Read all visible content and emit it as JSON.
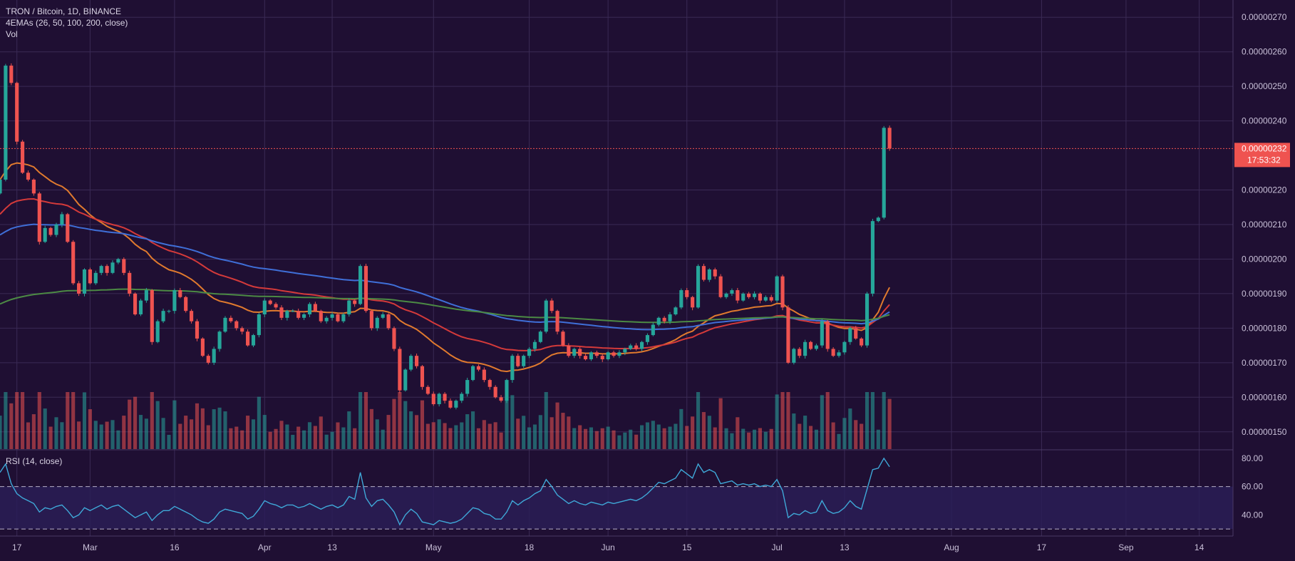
{
  "header": {
    "symbol_line": "TRON / Bitcoin, 1D, BINANCE",
    "ema_line": "4EMAs (26, 50, 100, 200, close)",
    "vol_line": "Vol",
    "rsi_line": "RSI (14, close)"
  },
  "price_tag": {
    "value": "0.00000232",
    "countdown": "17:53:32"
  },
  "colors": {
    "background": "#1f0f33",
    "grid": "#3a2a55",
    "up": "#26a69a",
    "down": "#ef5350",
    "ema26": "#e07a2e",
    "ema50": "#d43a3a",
    "ema100": "#3f6fd8",
    "ema200": "#4c8a44",
    "rsi": "#3fa8d8",
    "rsi_band": "#2b1e58"
  },
  "chart_data": [
    {
      "type": "candlestick",
      "title": "TRON / Bitcoin, 1D, BINANCE",
      "ylim": [
        1.45e-06,
        2.75e-06
      ],
      "y_ticks": [
        "0.00000150",
        "0.00000160",
        "0.00000170",
        "0.00000180",
        "0.00000190",
        "0.00000200",
        "0.00000210",
        "0.00000220",
        "0.00000240",
        "0.00000250",
        "0.00000260",
        "0.00000270"
      ],
      "x_ticks": [
        "17",
        "Mar",
        "16",
        "Apr",
        "13",
        "May",
        "18",
        "Jun",
        "15",
        "Jul",
        "13",
        "Aug",
        "17",
        "Sep",
        "14"
      ],
      "x_range": [
        "2020-02-14",
        "2020-09-20"
      ],
      "last_price": 2.32e-06,
      "close": [
        2.23e-06,
        2.56e-06,
        2.51e-06,
        2.34e-06,
        2.25e-06,
        2.23e-06,
        2.19e-06,
        2.05e-06,
        2.09e-06,
        2.07e-06,
        2.1e-06,
        2.13e-06,
        2.05e-06,
        1.93e-06,
        1.9e-06,
        1.97e-06,
        1.93e-06,
        1.96e-06,
        1.98e-06,
        1.96e-06,
        1.99e-06,
        2e-06,
        1.96e-06,
        1.9e-06,
        1.84e-06,
        1.88e-06,
        1.91e-06,
        1.76e-06,
        1.82e-06,
        1.85e-06,
        1.85e-06,
        1.91e-06,
        1.89e-06,
        1.85e-06,
        1.82e-06,
        1.77e-06,
        1.72e-06,
        1.7e-06,
        1.74e-06,
        1.79e-06,
        1.83e-06,
        1.82e-06,
        1.8e-06,
        1.79e-06,
        1.75e-06,
        1.78e-06,
        1.84e-06,
        1.88e-06,
        1.87e-06,
        1.86e-06,
        1.83e-06,
        1.85e-06,
        1.85e-06,
        1.83e-06,
        1.84e-06,
        1.87e-06,
        1.85e-06,
        1.82e-06,
        1.83e-06,
        1.84e-06,
        1.82e-06,
        1.84e-06,
        1.88e-06,
        1.87e-06,
        1.98e-06,
        1.85e-06,
        1.8e-06,
        1.83e-06,
        1.84e-06,
        1.8e-06,
        1.74e-06,
        1.62e-06,
        1.68e-06,
        1.72e-06,
        1.69e-06,
        1.63e-06,
        1.61e-06,
        1.58e-06,
        1.61e-06,
        1.59e-06,
        1.57e-06,
        1.59e-06,
        1.61e-06,
        1.65e-06,
        1.69e-06,
        1.68e-06,
        1.65e-06,
        1.63e-06,
        1.6e-06,
        1.59e-06,
        1.65e-06,
        1.72e-06,
        1.69e-06,
        1.72e-06,
        1.74e-06,
        1.76e-06,
        1.79e-06,
        1.88e-06,
        1.85e-06,
        1.79e-06,
        1.75e-06,
        1.72e-06,
        1.74e-06,
        1.72e-06,
        1.71e-06,
        1.73e-06,
        1.72e-06,
        1.71e-06,
        1.73e-06,
        1.72e-06,
        1.73e-06,
        1.74e-06,
        1.75e-06,
        1.74e-06,
        1.76e-06,
        1.78e-06,
        1.81e-06,
        1.83e-06,
        1.82e-06,
        1.84e-06,
        1.86e-06,
        1.91e-06,
        1.89e-06,
        1.86e-06,
        1.98e-06,
        1.94e-06,
        1.97e-06,
        1.95e-06,
        1.89e-06,
        1.9e-06,
        1.91e-06,
        1.88e-06,
        1.9e-06,
        1.89e-06,
        1.9e-06,
        1.88e-06,
        1.89e-06,
        1.88e-06,
        1.95e-06,
        1.86e-06,
        1.7e-06,
        1.74e-06,
        1.72e-06,
        1.76e-06,
        1.74e-06,
        1.75e-06,
        1.82e-06,
        1.74e-06,
        1.72e-06,
        1.73e-06,
        1.76e-06,
        1.8e-06,
        1.77e-06,
        1.75e-06,
        1.9e-06,
        2.11e-06,
        2.12e-06,
        2.38e-06,
        2.32e-06
      ]
    },
    {
      "type": "line",
      "title": "RSI (14, close)",
      "ylim": [
        25,
        85
      ],
      "y_ticks": [
        "40.00",
        "60.00",
        "80.00"
      ],
      "band": [
        30,
        60
      ],
      "values": [
        70,
        76,
        62,
        55,
        52,
        50,
        48,
        42,
        45,
        44,
        46,
        47,
        43,
        38,
        40,
        45,
        43,
        45,
        47,
        44,
        46,
        47,
        44,
        41,
        38,
        40,
        42,
        36,
        40,
        43,
        43,
        46,
        44,
        42,
        40,
        37,
        35,
        34,
        37,
        42,
        44,
        43,
        42,
        41,
        37,
        39,
        44,
        50,
        48,
        47,
        45,
        47,
        47,
        45,
        46,
        48,
        46,
        44,
        46,
        47,
        45,
        47,
        53,
        51,
        70,
        52,
        46,
        50,
        51,
        47,
        42,
        33,
        40,
        44,
        41,
        35,
        34,
        33,
        36,
        35,
        34,
        35,
        37,
        41,
        45,
        44,
        41,
        40,
        37,
        37,
        42,
        50,
        47,
        50,
        52,
        55,
        57,
        65,
        60,
        54,
        51,
        48,
        50,
        48,
        47,
        49,
        48,
        47,
        49,
        48,
        49,
        50,
        51,
        50,
        52,
        55,
        59,
        63,
        62,
        64,
        66,
        72,
        69,
        66,
        76,
        70,
        72,
        70,
        62,
        63,
        64,
        61,
        62,
        61,
        62,
        60,
        61,
        60,
        65,
        57,
        38,
        41,
        40,
        43,
        41,
        42,
        50,
        43,
        41,
        42,
        45,
        50,
        46,
        44,
        58,
        72,
        73,
        80,
        74
      ]
    }
  ]
}
